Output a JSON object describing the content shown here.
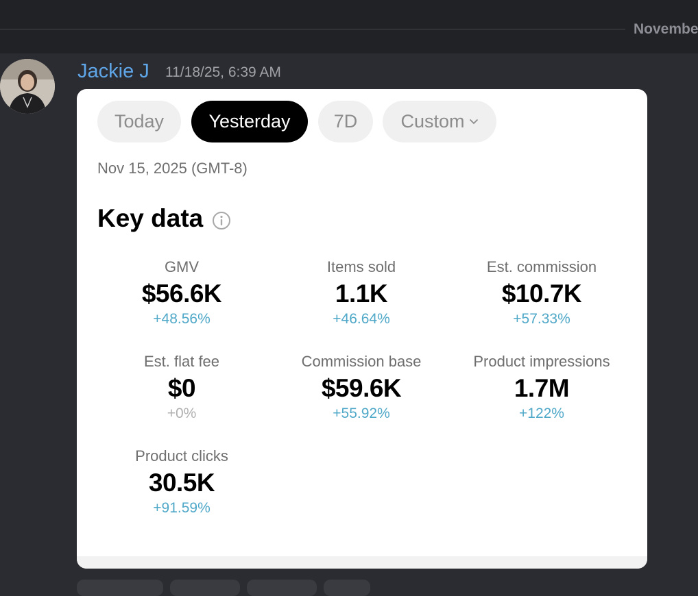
{
  "channel": {
    "date_divider": "Novembe"
  },
  "message": {
    "author": "Jackie J",
    "timestamp": "11/18/25, 6:39 AM"
  },
  "card": {
    "tabs": [
      {
        "label": "Today",
        "active": false
      },
      {
        "label": "Yesterday",
        "active": true
      },
      {
        "label": "7D",
        "active": false
      },
      {
        "label": "Custom",
        "active": false
      }
    ],
    "date_range": "Nov 15, 2025 (GMT-8)",
    "section_title": "Key data",
    "metrics": [
      {
        "label": "GMV",
        "value": "$56.6K",
        "change": "+48.56%"
      },
      {
        "label": "Items sold",
        "value": "1.1K",
        "change": "+46.64%"
      },
      {
        "label": "Est. commission",
        "value": "$10.7K",
        "change": "+57.33%"
      },
      {
        "label": "Est. flat fee",
        "value": "$0",
        "change": "+0%"
      },
      {
        "label": "Commission base",
        "value": "$59.6K",
        "change": "+55.92%"
      },
      {
        "label": "Product impressions",
        "value": "1.7M",
        "change": "+122%"
      },
      {
        "label": "Product clicks",
        "value": "30.5K",
        "change": "+91.59%"
      }
    ]
  },
  "colors": {
    "author": "#5fa6e8",
    "positive_change": "#4fa8c8",
    "neutral_change": "#b0b0b0",
    "active_tab": "#000000"
  },
  "icons": {
    "info": "info-circle-icon",
    "custom_dropdown": "chevron-down-icon"
  }
}
